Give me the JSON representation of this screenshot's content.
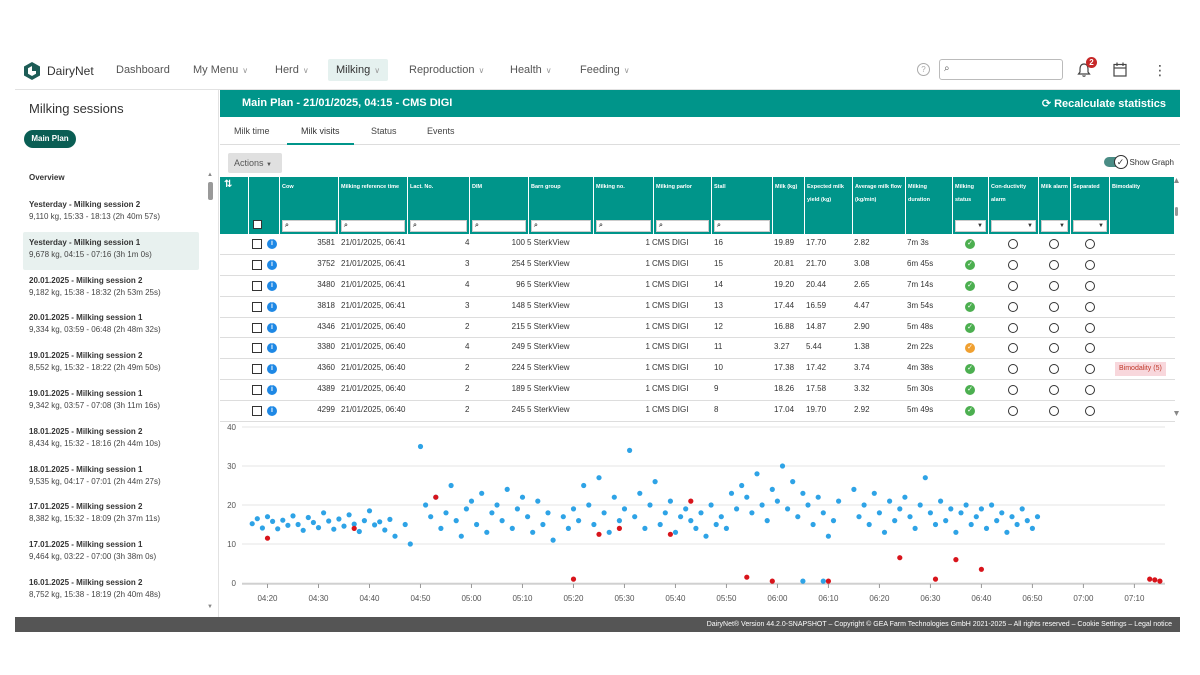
{
  "app": {
    "name": "DairyNet"
  },
  "nav": [
    {
      "label": "Dashboard",
      "chevron": false
    },
    {
      "label": "My Menu",
      "chevron": true
    },
    {
      "label": "Herd",
      "chevron": true
    },
    {
      "label": "Milking",
      "chevron": true,
      "active": true
    },
    {
      "label": "Reproduction",
      "chevron": true
    },
    {
      "label": "Health",
      "chevron": true
    },
    {
      "label": "Feeding",
      "chevron": true
    }
  ],
  "header": {
    "help": "?",
    "search_value": "",
    "notification_count": "2",
    "kebab": "⋮"
  },
  "sidebar": {
    "title": "Milking sessions",
    "main_plan_button": "Main Plan",
    "overview_label": "Overview",
    "sessions": [
      {
        "title": "Yesterday - Milking session 2",
        "summary": "9,110 kg, 15:33 - 18:13 (2h 40m 57s)"
      },
      {
        "title": "Yesterday - Milking session 1",
        "summary": "9,678 kg, 04:15 - 07:16 (3h 1m 0s)",
        "selected": true
      },
      {
        "title": "20.01.2025 - Milking session 2",
        "summary": "9,182 kg, 15:38 - 18:32 (2h 53m 25s)"
      },
      {
        "title": "20.01.2025 - Milking session 1",
        "summary": "9,334 kg, 03:59 - 06:48 (2h 48m 32s)"
      },
      {
        "title": "19.01.2025 - Milking session 2",
        "summary": "8,552 kg, 15:32 - 18:22 (2h 49m 50s)"
      },
      {
        "title": "19.01.2025 - Milking session 1",
        "summary": "9,342 kg, 03:57 - 07:08 (3h 11m 16s)"
      },
      {
        "title": "18.01.2025 - Milking session 2",
        "summary": "8,434 kg, 15:32 - 18:16 (2h 44m 10s)"
      },
      {
        "title": "18.01.2025 - Milking session 1",
        "summary": "9,535 kg, 04:17 - 07:01 (2h 44m 27s)"
      },
      {
        "title": "17.01.2025 - Milking session 2",
        "summary": "8,382 kg, 15:32 - 18:09 (2h 37m 11s)"
      },
      {
        "title": "17.01.2025 - Milking session 1",
        "summary": "9,464 kg, 03:22 - 07:00 (3h 38m 0s)"
      },
      {
        "title": "16.01.2025 - Milking session 2",
        "summary": "8,752 kg, 15:38 - 18:19 (2h 40m 48s)"
      }
    ]
  },
  "main": {
    "title": "Main Plan - 21/01/2025, 04:15 - CMS DIGI",
    "recalculate": "Recalculate statistics",
    "tabs": [
      "Milk time",
      "Milk visits",
      "Status",
      "Events"
    ],
    "active_tab": "Milk visits",
    "actions_label": "Actions",
    "show_graph_label": "Show Graph"
  },
  "table": {
    "columns": [
      {
        "key": "cow",
        "label": "Cow",
        "filter": "search"
      },
      {
        "key": "ref_time",
        "label": "Milking reference time",
        "filter": "search"
      },
      {
        "key": "lact",
        "label": "Lact. No.",
        "filter": "search"
      },
      {
        "key": "dim",
        "label": "DIM",
        "filter": "search"
      },
      {
        "key": "barn",
        "label": "Barn group",
        "filter": "search"
      },
      {
        "key": "milking_no",
        "label": "Milking no.",
        "filter": "search"
      },
      {
        "key": "parlor",
        "label": "Milking parlor",
        "filter": "search"
      },
      {
        "key": "stall",
        "label": "Stall",
        "filter": "search"
      },
      {
        "key": "milk",
        "label": "Milk (kg)",
        "filter": "none"
      },
      {
        "key": "expected",
        "label": "Expected milk yield (kg)",
        "filter": "none"
      },
      {
        "key": "avg_flow",
        "label": "Average milk flow (kg/min)",
        "filter": "none"
      },
      {
        "key": "duration",
        "label": "Milking duration",
        "filter": "none"
      },
      {
        "key": "status",
        "label": "Milking status",
        "filter": "dropdown"
      },
      {
        "key": "cond",
        "label": "Con-ductivity alarm",
        "filter": "dropdown"
      },
      {
        "key": "milk_alarm",
        "label": "Milk alarm",
        "filter": "dropdown"
      },
      {
        "key": "separated",
        "label": "Separated",
        "filter": "dropdown"
      },
      {
        "key": "bimodality",
        "label": "Bimodality",
        "filter": "none"
      }
    ],
    "rows": [
      {
        "cow": "3581",
        "ref_time": "21/01/2025, 06:41",
        "lact": "4",
        "dim": "100",
        "barn": "5 SterkView",
        "milking_no": "1",
        "parlor": "CMS DIGI",
        "stall": "16",
        "milk": "19.89",
        "expected": "17.70",
        "avg_flow": "2.82",
        "duration": "7m 3s",
        "status": "ok",
        "bimodality": ""
      },
      {
        "cow": "3752",
        "ref_time": "21/01/2025, 06:41",
        "lact": "3",
        "dim": "254",
        "barn": "5 SterkView",
        "milking_no": "1",
        "parlor": "CMS DIGI",
        "stall": "15",
        "milk": "20.81",
        "expected": "21.70",
        "avg_flow": "3.08",
        "duration": "6m 45s",
        "status": "ok",
        "bimodality": ""
      },
      {
        "cow": "3480",
        "ref_time": "21/01/2025, 06:41",
        "lact": "4",
        "dim": "96",
        "barn": "5 SterkView",
        "milking_no": "1",
        "parlor": "CMS DIGI",
        "stall": "14",
        "milk": "19.20",
        "expected": "20.44",
        "avg_flow": "2.65",
        "duration": "7m 14s",
        "status": "ok",
        "bimodality": ""
      },
      {
        "cow": "3818",
        "ref_time": "21/01/2025, 06:41",
        "lact": "3",
        "dim": "148",
        "barn": "5 SterkView",
        "milking_no": "1",
        "parlor": "CMS DIGI",
        "stall": "13",
        "milk": "17.44",
        "expected": "16.59",
        "avg_flow": "4.47",
        "duration": "3m 54s",
        "status": "ok",
        "bimodality": ""
      },
      {
        "cow": "4346",
        "ref_time": "21/01/2025, 06:40",
        "lact": "2",
        "dim": "215",
        "barn": "5 SterkView",
        "milking_no": "1",
        "parlor": "CMS DIGI",
        "stall": "12",
        "milk": "16.88",
        "expected": "14.87",
        "avg_flow": "2.90",
        "duration": "5m 48s",
        "status": "ok",
        "bimodality": ""
      },
      {
        "cow": "3380",
        "ref_time": "21/01/2025, 06:40",
        "lact": "4",
        "dim": "249",
        "barn": "5 SterkView",
        "milking_no": "1",
        "parlor": "CMS DIGI",
        "stall": "11",
        "milk": "3.27",
        "expected": "5.44",
        "avg_flow": "1.38",
        "duration": "2m 22s",
        "status": "warn",
        "bimodality": ""
      },
      {
        "cow": "4360",
        "ref_time": "21/01/2025, 06:40",
        "lact": "2",
        "dim": "224",
        "barn": "5 SterkView",
        "milking_no": "1",
        "parlor": "CMS DIGI",
        "stall": "10",
        "milk": "17.38",
        "expected": "17.42",
        "avg_flow": "3.74",
        "duration": "4m 38s",
        "status": "ok",
        "bimodality": "Bimodality (5)"
      },
      {
        "cow": "4389",
        "ref_time": "21/01/2025, 06:40",
        "lact": "2",
        "dim": "189",
        "barn": "5 SterkView",
        "milking_no": "1",
        "parlor": "CMS DIGI",
        "stall": "9",
        "milk": "18.26",
        "expected": "17.58",
        "avg_flow": "3.32",
        "duration": "5m 30s",
        "status": "ok",
        "bimodality": ""
      },
      {
        "cow": "4299",
        "ref_time": "21/01/2025, 06:40",
        "lact": "2",
        "dim": "245",
        "barn": "5 SterkView",
        "milking_no": "1",
        "parlor": "CMS DIGI",
        "stall": "8",
        "milk": "17.04",
        "expected": "19.70",
        "avg_flow": "2.92",
        "duration": "5m 49s",
        "status": "ok",
        "bimodality": ""
      }
    ]
  },
  "colors": {
    "teal": "#00958a",
    "dark_teal": "#0a5e54",
    "point_blue": "#2ea3e6",
    "point_red": "#d8141b"
  },
  "chart_data": {
    "type": "scatter",
    "title": "",
    "xlabel": "",
    "ylabel": "",
    "y_ticks": [
      "0",
      "10",
      "20",
      "30",
      "40"
    ],
    "ylim": [
      0,
      40
    ],
    "x_ticks": [
      "04:20",
      "04:30",
      "04:40",
      "04:50",
      "05:00",
      "05:10",
      "05:20",
      "05:30",
      "05:40",
      "05:50",
      "06:00",
      "06:10",
      "06:20",
      "06:30",
      "06:40",
      "06:50",
      "07:00",
      "07:10"
    ],
    "xlim": [
      "04:15",
      "07:16"
    ],
    "grid": "horizontal",
    "series": [
      {
        "color": "blue",
        "points": [
          [
            "04:17",
            15.2
          ],
          [
            "04:18",
            16.5
          ],
          [
            "04:19",
            14.1
          ],
          [
            "04:20",
            17.0
          ],
          [
            "04:21",
            15.8
          ],
          [
            "04:22",
            13.9
          ],
          [
            "04:23",
            16.1
          ],
          [
            "04:24",
            14.8
          ],
          [
            "04:25",
            17.2
          ],
          [
            "04:26",
            15.0
          ],
          [
            "04:27",
            13.5
          ],
          [
            "04:28",
            16.8
          ],
          [
            "04:29",
            15.5
          ],
          [
            "04:30",
            14.2
          ],
          [
            "04:31",
            18.0
          ],
          [
            "04:32",
            15.9
          ],
          [
            "04:33",
            13.8
          ],
          [
            "04:34",
            16.4
          ],
          [
            "04:35",
            14.6
          ],
          [
            "04:36",
            17.5
          ],
          [
            "04:37",
            15.1
          ],
          [
            "04:38",
            13.2
          ],
          [
            "04:39",
            16.0
          ],
          [
            "04:40",
            18.5
          ],
          [
            "04:41",
            14.9
          ],
          [
            "04:42",
            15.7
          ],
          [
            "04:43",
            13.6
          ],
          [
            "04:44",
            16.3
          ],
          [
            "04:45",
            12.0
          ],
          [
            "04:47",
            15.0
          ],
          [
            "04:48",
            10.0
          ],
          [
            "04:50",
            35.0
          ],
          [
            "04:51",
            20.0
          ],
          [
            "04:52",
            17.0
          ],
          [
            "04:53",
            22.0
          ],
          [
            "04:54",
            14.0
          ],
          [
            "04:55",
            18.0
          ],
          [
            "04:56",
            25.0
          ],
          [
            "04:57",
            16.0
          ],
          [
            "04:58",
            12.0
          ],
          [
            "04:59",
            19.0
          ],
          [
            "05:00",
            21.0
          ],
          [
            "05:01",
            15.0
          ],
          [
            "05:02",
            23.0
          ],
          [
            "05:03",
            13.0
          ],
          [
            "05:04",
            18.0
          ],
          [
            "05:05",
            20.0
          ],
          [
            "05:06",
            16.0
          ],
          [
            "05:07",
            24.0
          ],
          [
            "05:08",
            14.0
          ],
          [
            "05:09",
            19.0
          ],
          [
            "05:10",
            22.0
          ],
          [
            "05:11",
            17.0
          ],
          [
            "05:12",
            13.0
          ],
          [
            "05:13",
            21.0
          ],
          [
            "05:14",
            15.0
          ],
          [
            "05:15",
            18.0
          ],
          [
            "05:16",
            11.0
          ],
          [
            "05:18",
            17.0
          ],
          [
            "05:19",
            14.0
          ],
          [
            "05:20",
            19.0
          ],
          [
            "05:21",
            16.0
          ],
          [
            "05:22",
            25.0
          ],
          [
            "05:23",
            20.0
          ],
          [
            "05:24",
            15.0
          ],
          [
            "05:25",
            27.0
          ],
          [
            "05:26",
            18.0
          ],
          [
            "05:27",
            13.0
          ],
          [
            "05:28",
            22.0
          ],
          [
            "05:29",
            16.0
          ],
          [
            "05:30",
            19.0
          ],
          [
            "05:31",
            34.0
          ],
          [
            "05:32",
            17.0
          ],
          [
            "05:33",
            23.0
          ],
          [
            "05:34",
            14.0
          ],
          [
            "05:35",
            20.0
          ],
          [
            "05:36",
            26.0
          ],
          [
            "05:37",
            15.0
          ],
          [
            "05:38",
            18.0
          ],
          [
            "05:39",
            21.0
          ],
          [
            "05:40",
            13.0
          ],
          [
            "05:41",
            17.0
          ],
          [
            "05:42",
            19.0
          ],
          [
            "05:43",
            16.0
          ],
          [
            "05:44",
            14.0
          ],
          [
            "05:45",
            18.0
          ],
          [
            "05:46",
            12.0
          ],
          [
            "05:47",
            20.0
          ],
          [
            "05:48",
            15.0
          ],
          [
            "05:49",
            17.0
          ],
          [
            "05:50",
            14.0
          ],
          [
            "05:51",
            23.0
          ],
          [
            "05:52",
            19.0
          ],
          [
            "05:53",
            25.0
          ],
          [
            "05:54",
            22.0
          ],
          [
            "05:55",
            18.0
          ],
          [
            "05:56",
            28.0
          ],
          [
            "05:57",
            20.0
          ],
          [
            "05:58",
            16.0
          ],
          [
            "05:59",
            24.0
          ],
          [
            "06:00",
            21.0
          ],
          [
            "06:01",
            30.0
          ],
          [
            "06:02",
            19.0
          ],
          [
            "06:03",
            26.0
          ],
          [
            "06:04",
            17.0
          ],
          [
            "06:05",
            23.0
          ],
          [
            "06:06",
            20.0
          ],
          [
            "06:07",
            15.0
          ],
          [
            "06:08",
            22.0
          ],
          [
            "06:09",
            18.0
          ],
          [
            "06:10",
            12.0
          ],
          [
            "06:11",
            16.0
          ],
          [
            "06:12",
            21.0
          ],
          [
            "06:15",
            24.0
          ],
          [
            "06:16",
            17.0
          ],
          [
            "06:17",
            20.0
          ],
          [
            "06:18",
            15.0
          ],
          [
            "06:19",
            23.0
          ],
          [
            "06:20",
            18.0
          ],
          [
            "06:21",
            13.0
          ],
          [
            "06:22",
            21.0
          ],
          [
            "06:23",
            16.0
          ],
          [
            "06:24",
            19.0
          ],
          [
            "06:25",
            22.0
          ],
          [
            "06:26",
            17.0
          ],
          [
            "06:27",
            14.0
          ],
          [
            "06:28",
            20.0
          ],
          [
            "06:29",
            27.0
          ],
          [
            "06:30",
            18.0
          ],
          [
            "06:31",
            15.0
          ],
          [
            "06:32",
            21.0
          ],
          [
            "06:33",
            16.0
          ],
          [
            "06:34",
            19.0
          ],
          [
            "06:35",
            13.0
          ],
          [
            "06:36",
            18.0
          ],
          [
            "06:37",
            20.0
          ],
          [
            "06:38",
            15.0
          ],
          [
            "06:39",
            17.0
          ],
          [
            "06:40",
            19.0
          ],
          [
            "06:41",
            14.0
          ],
          [
            "06:42",
            20.0
          ],
          [
            "06:43",
            16.0
          ],
          [
            "06:44",
            18.0
          ],
          [
            "06:45",
            13.0
          ],
          [
            "06:46",
            17.0
          ],
          [
            "06:47",
            15.0
          ],
          [
            "06:48",
            19.0
          ],
          [
            "06:49",
            16.0
          ],
          [
            "06:50",
            14.0
          ],
          [
            "06:51",
            17.0
          ],
          [
            "06:05",
            0.5
          ],
          [
            "06:09",
            0.5
          ]
        ]
      },
      {
        "color": "red",
        "points": [
          [
            "04:20",
            11.5
          ],
          [
            "04:37",
            14.0
          ],
          [
            "04:53",
            22.0
          ],
          [
            "05:20",
            1.0
          ],
          [
            "05:25",
            12.5
          ],
          [
            "05:29",
            14.0
          ],
          [
            "05:39",
            12.5
          ],
          [
            "05:43",
            21.0
          ],
          [
            "05:54",
            1.5
          ],
          [
            "05:59",
            0.5
          ],
          [
            "06:10",
            0.5
          ],
          [
            "06:24",
            6.5
          ],
          [
            "06:31",
            1.0
          ],
          [
            "06:35",
            6.0
          ],
          [
            "06:40",
            3.5
          ],
          [
            "07:13",
            1.0
          ],
          [
            "07:14",
            0.8
          ],
          [
            "07:15",
            0.5
          ]
        ]
      }
    ]
  },
  "footer": {
    "text": "DairyNet® Version 44.2.0-SNAPSHOT – Copyright © GEA Farm Technologies GmbH 2021-2025 – All rights reserved – Cookie Settings – Legal notice"
  }
}
